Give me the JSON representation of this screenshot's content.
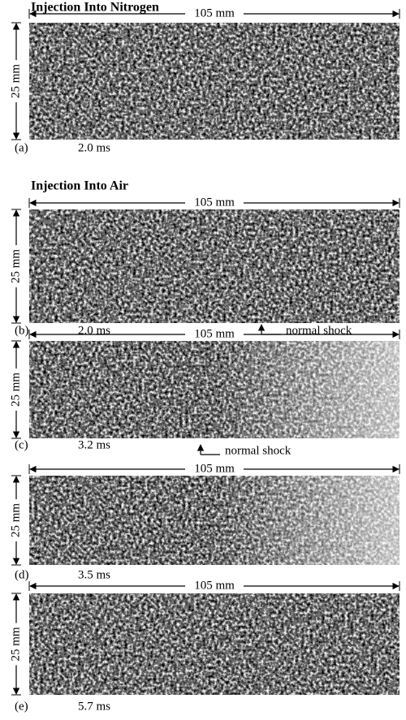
{
  "sections": [
    {
      "title": "Injection Into Nitrogen",
      "panels": [
        {
          "width_label": "105 mm",
          "height_label": "25 mm",
          "label": "(a)",
          "time": "2.0 ms"
        }
      ]
    },
    {
      "title": "Injection Into Air",
      "panels": [
        {
          "width_label": "105 mm",
          "height_label": "25 mm",
          "label": "(b)",
          "time": "2.0 ms",
          "annotation": "normal shock"
        },
        {
          "width_label": "105 mm",
          "height_label": "25 mm",
          "label": "(c)",
          "time": "3.2 ms",
          "annotation": "normal shock"
        },
        {
          "width_label": "105 mm",
          "height_label": "25 mm",
          "label": "(d)",
          "time": "3.5 ms"
        },
        {
          "width_label": "105 mm",
          "height_label": "25 mm",
          "label": "(e)",
          "time": "5.7 ms"
        }
      ]
    }
  ]
}
